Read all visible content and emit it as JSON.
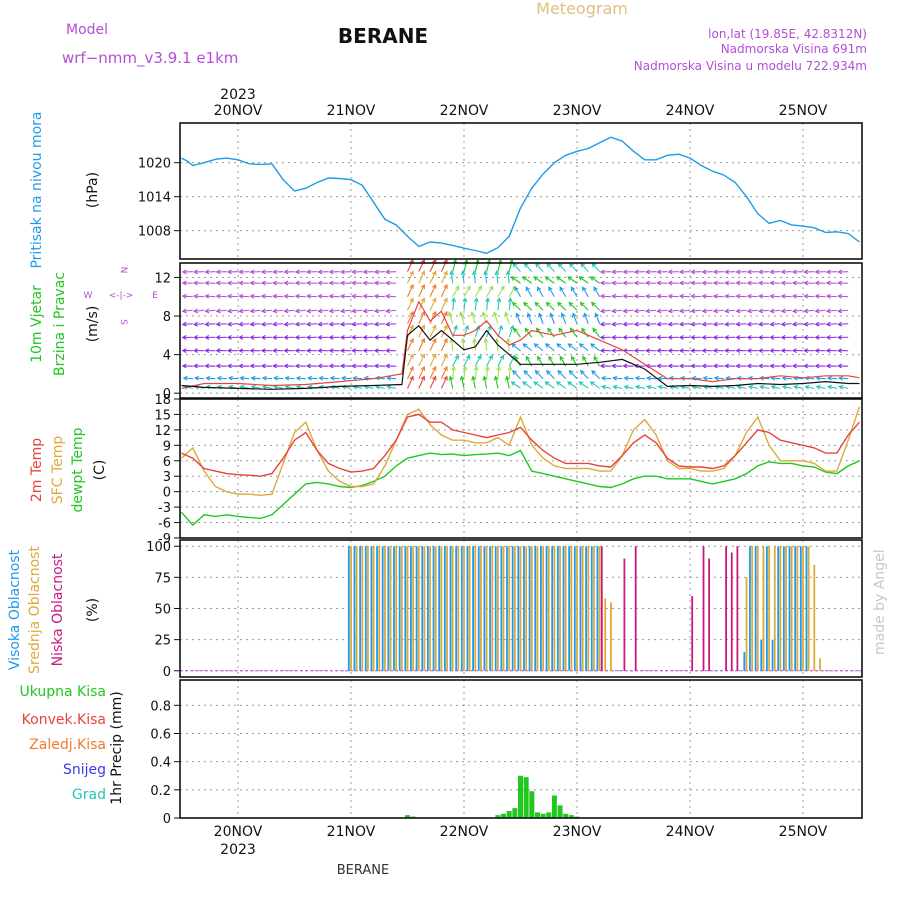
{
  "header": {
    "model_label": "Model",
    "model_name": "wrf−nmm_v3.9.1  e1km",
    "title": "BERANE",
    "meteogram_label": "Meteogram",
    "coords": "lon,lat (19.85E, 42.8312N)",
    "elevation": "Nadmorska Visina 691m",
    "model_elevation": "Nadmorska Visina u modelu 722.934m"
  },
  "footer": {
    "location": "BERANE",
    "watermark": "made by Angel"
  },
  "time_axis": {
    "year": "2023",
    "days": [
      "20NOV",
      "21NOV",
      "22NOV",
      "23NOV",
      "24NOV",
      "25NOV"
    ]
  },
  "colors": {
    "pressure": "#1e9be8",
    "temp_2m": "#e8433b",
    "temp_sfc": "#e0a83a",
    "dewpoint": "#22c722",
    "cloud_high": "#1e9be8",
    "cloud_mid": "#e0a83a",
    "cloud_low": "#c8197e",
    "precip_total": "#22c722",
    "precip_conv": "#e8433b",
    "precip_frozen": "#f07c2a",
    "precip_snow": "#3a3ae8",
    "precip_graupel": "#22c7b5",
    "model_text": "#b34fd6",
    "meteogram_text": "#e0c080"
  },
  "chart_data": [
    {
      "type": "line",
      "panel": "pressure",
      "ylabel_main": "Pritisak na nivou mora",
      "unit": "(hPa)",
      "ylim": [
        1003,
        1027
      ],
      "yticks": [
        1008,
        1014,
        1020
      ],
      "x_days": [
        -0.5,
        -0.45,
        -0.4,
        -0.3,
        -0.2,
        -0.1,
        0.0,
        0.1,
        0.2,
        0.3,
        0.4,
        0.5,
        0.6,
        0.7,
        0.8,
        0.9,
        1.0,
        1.1,
        1.2,
        1.3,
        1.4,
        1.5,
        1.6,
        1.7,
        1.8,
        1.9,
        2.0,
        2.1,
        2.2,
        2.3,
        2.4,
        2.5,
        2.6,
        2.7,
        2.8,
        2.9,
        3.0,
        3.1,
        3.2,
        3.3,
        3.4,
        3.5,
        3.6,
        3.7,
        3.8,
        3.9,
        4.0,
        4.1,
        4.2,
        4.3,
        4.4,
        4.5,
        4.6,
        4.7,
        4.8,
        4.9,
        5.0,
        5.1,
        5.2,
        5.3,
        5.4,
        5.5
      ],
      "series": [
        {
          "values": [
            1020.8,
            1020.3,
            1019.5,
            1020.0,
            1020.6,
            1020.8,
            1020.5,
            1019.8,
            1019.7,
            1019.8,
            1017.0,
            1015.0,
            1015.5,
            1016.5,
            1017.3,
            1017.2,
            1017.0,
            1016.0,
            1013.0,
            1010.0,
            1009.0,
            1007.0,
            1005.2,
            1006.0,
            1005.8,
            1005.4,
            1004.9,
            1004.5,
            1004.0,
            1005.0,
            1007.0,
            1012.0,
            1015.5,
            1018.0,
            1020.0,
            1021.3,
            1022.0,
            1022.5,
            1023.5,
            1024.5,
            1023.8,
            1022.0,
            1020.5,
            1020.5,
            1021.3,
            1021.5,
            1020.8,
            1019.5,
            1018.5,
            1017.8,
            1016.5,
            1014.0,
            1011.0,
            1009.3,
            1009.8,
            1009.0,
            1008.8,
            1008.5,
            1007.7,
            1007.8,
            1007.5,
            1006.0
          ]
        }
      ]
    },
    {
      "type": "line",
      "panel": "wind",
      "ylabel_main": "10m Vjetar",
      "ylabel_sub": "Brzina i Pravac",
      "unit": "(m/s)",
      "compass": {
        "n": "N",
        "s": "S",
        "e": "E",
        "w": "W",
        "arrows": "<-|->"
      },
      "ylim": [
        -0.5,
        13.5
      ],
      "yticks": [
        0,
        4,
        8,
        12
      ],
      "x_days": [
        -0.5,
        -0.3,
        0.0,
        0.3,
        0.6,
        0.9,
        1.2,
        1.45,
        1.5,
        1.6,
        1.7,
        1.8,
        1.9,
        2.0,
        2.1,
        2.2,
        2.3,
        2.4,
        2.5,
        2.6,
        2.8,
        3.0,
        3.2,
        3.4,
        3.6,
        3.8,
        4.0,
        4.2,
        4.4,
        4.6,
        4.8,
        5.0,
        5.2,
        5.4,
        5.5
      ],
      "series": [
        {
          "name": "speed",
          "values": [
            0.8,
            0.6,
            0.5,
            0.4,
            0.5,
            0.7,
            0.8,
            0.9,
            6.0,
            7.0,
            5.5,
            6.5,
            5.5,
            4.5,
            4.8,
            6.5,
            5.0,
            4.0,
            3.0,
            3.0,
            3.0,
            3.0,
            3.2,
            3.5,
            2.5,
            0.7,
            0.8,
            0.7,
            0.8,
            1.0,
            0.9,
            1.0,
            1.2,
            1.0,
            1.0
          ]
        },
        {
          "name": "gust",
          "values": [
            0.5,
            1.0,
            1.0,
            0.8,
            0.9,
            1.2,
            1.5,
            2.0,
            6.5,
            9.5,
            7.5,
            8.5,
            6.0,
            6.0,
            6.5,
            7.5,
            6.0,
            5.0,
            5.5,
            6.5,
            6.0,
            6.5,
            5.5,
            4.5,
            3.0,
            1.5,
            1.5,
            1.2,
            1.5,
            1.5,
            1.8,
            1.6,
            1.8,
            1.8,
            1.6
          ]
        }
      ]
    },
    {
      "type": "line",
      "panel": "temperature",
      "ylabel_lines": [
        "2m Temp",
        "SFC Temp",
        "dewpt Temp"
      ],
      "unit": "(C)",
      "ylim": [
        -9,
        18
      ],
      "yticks": [
        -9,
        -6,
        -3,
        0,
        3,
        6,
        9,
        12,
        15,
        18
      ],
      "x_days": [
        -0.5,
        -0.4,
        -0.3,
        -0.2,
        -0.1,
        0.0,
        0.1,
        0.2,
        0.3,
        0.4,
        0.5,
        0.6,
        0.7,
        0.8,
        0.9,
        1.0,
        1.1,
        1.2,
        1.3,
        1.4,
        1.5,
        1.6,
        1.7,
        1.8,
        1.9,
        2.0,
        2.1,
        2.2,
        2.3,
        2.4,
        2.5,
        2.6,
        2.7,
        2.8,
        2.9,
        3.0,
        3.1,
        3.2,
        3.3,
        3.4,
        3.5,
        3.6,
        3.7,
        3.8,
        3.9,
        4.0,
        4.1,
        4.2,
        4.3,
        4.4,
        4.5,
        4.6,
        4.7,
        4.8,
        4.9,
        5.0,
        5.1,
        5.2,
        5.3,
        5.4,
        5.5
      ],
      "series": [
        {
          "name": "2m Temp",
          "values": [
            7.5,
            6.5,
            4.5,
            4.0,
            3.5,
            3.3,
            3.2,
            3.0,
            3.5,
            6.5,
            10.0,
            11.5,
            8.0,
            5.5,
            4.5,
            3.8,
            4.0,
            4.5,
            7.0,
            10.0,
            14.5,
            15.0,
            13.5,
            13.5,
            12.0,
            11.5,
            11.0,
            10.5,
            11.0,
            11.5,
            12.5,
            10.0,
            8.0,
            6.5,
            5.5,
            5.5,
            5.5,
            5.0,
            4.8,
            7.0,
            9.5,
            11.0,
            9.5,
            6.5,
            5.0,
            4.8,
            4.8,
            4.5,
            5.0,
            7.0,
            9.5,
            12.0,
            11.5,
            10.0,
            9.5,
            9.0,
            8.5,
            7.5,
            7.5,
            11.0,
            13.5
          ]
        },
        {
          "name": "SFC Temp",
          "values": [
            6.5,
            8.5,
            4.0,
            1.0,
            0.0,
            -0.5,
            -0.5,
            -0.7,
            -0.5,
            5.5,
            11.5,
            13.5,
            8.0,
            4.0,
            2.0,
            1.0,
            1.0,
            1.5,
            5.0,
            10.0,
            15.0,
            16.0,
            13.0,
            11.0,
            10.0,
            10.0,
            9.5,
            9.5,
            10.5,
            9.0,
            14.5,
            9.0,
            6.5,
            5.0,
            4.5,
            4.5,
            4.5,
            4.0,
            4.0,
            7.0,
            12.0,
            14.0,
            11.0,
            6.0,
            4.5,
            4.5,
            4.0,
            4.0,
            4.5,
            7.0,
            11.5,
            14.5,
            9.0,
            6.0,
            6.0,
            6.0,
            5.5,
            4.0,
            4.0,
            10.0,
            16.5
          ]
        },
        {
          "name": "dewpt Temp",
          "values": [
            -4.0,
            -6.5,
            -4.5,
            -4.8,
            -4.5,
            -4.8,
            -5.0,
            -5.2,
            -4.5,
            -2.5,
            -0.5,
            1.5,
            1.8,
            1.5,
            1.0,
            0.8,
            1.2,
            2.0,
            3.0,
            5.0,
            6.5,
            7.0,
            7.5,
            7.2,
            7.3,
            7.0,
            7.2,
            7.3,
            7.5,
            7.0,
            8.0,
            4.0,
            3.5,
            3.0,
            2.5,
            2.0,
            1.5,
            1.0,
            0.8,
            1.5,
            2.5,
            3.0,
            3.0,
            2.5,
            2.5,
            2.5,
            2.0,
            1.5,
            2.0,
            2.5,
            3.5,
            5.0,
            5.8,
            5.5,
            5.5,
            5.0,
            4.8,
            3.8,
            3.5,
            5.0,
            6.0
          ]
        }
      ]
    },
    {
      "type": "bar",
      "panel": "cloud_cover",
      "ylabel_lines": [
        "Visoka Oblacnost",
        "Srednja Oblacnost",
        "Niska Oblacnost"
      ],
      "unit": "(%)",
      "ylim": [
        -5,
        105
      ],
      "yticks": [
        0,
        25,
        50,
        75,
        100
      ],
      "x_days": [
        1.0,
        1.05,
        1.1,
        1.15,
        1.2,
        1.25,
        1.3,
        1.35,
        1.4,
        1.45,
        1.5,
        1.55,
        1.6,
        1.65,
        1.7,
        1.75,
        1.8,
        1.85,
        1.9,
        1.95,
        2.0,
        2.05,
        2.1,
        2.15,
        2.2,
        2.25,
        2.3,
        2.35,
        2.4,
        2.45,
        2.5,
        2.55,
        2.6,
        2.65,
        2.7,
        2.75,
        2.8,
        2.85,
        2.9,
        2.95,
        3.0,
        3.05,
        3.1,
        3.15,
        3.2,
        3.25,
        3.3,
        3.4,
        3.5,
        4.0,
        4.1,
        4.15,
        4.3,
        4.35,
        4.4,
        4.5,
        4.55,
        4.6,
        4.65,
        4.7,
        4.75,
        4.8,
        4.85,
        4.9,
        4.95,
        5.0,
        5.05,
        5.1,
        5.15,
        5.2,
        5.25
      ],
      "series": [
        {
          "name": "Visoka Oblacnost",
          "values": [
            100,
            100,
            100,
            100,
            100,
            100,
            100,
            100,
            100,
            100,
            100,
            100,
            100,
            100,
            100,
            100,
            100,
            100,
            100,
            100,
            100,
            100,
            100,
            100,
            100,
            100,
            100,
            100,
            100,
            100,
            100,
            100,
            100,
            100,
            100,
            100,
            100,
            100,
            100,
            100,
            100,
            100,
            100,
            100,
            100,
            0,
            0,
            0,
            0,
            0,
            0,
            0,
            0,
            0,
            0,
            15,
            100,
            100,
            25,
            100,
            25,
            100,
            100,
            100,
            100,
            100,
            100,
            0,
            0,
            0,
            0
          ]
        },
        {
          "name": "Srednja Oblacnost",
          "values": [
            100,
            100,
            100,
            100,
            100,
            100,
            100,
            100,
            100,
            100,
            100,
            100,
            100,
            100,
            100,
            100,
            100,
            100,
            100,
            100,
            100,
            100,
            100,
            100,
            100,
            100,
            100,
            100,
            100,
            100,
            100,
            100,
            100,
            100,
            100,
            100,
            100,
            100,
            100,
            100,
            100,
            100,
            100,
            100,
            100,
            58,
            55,
            0,
            0,
            0,
            0,
            0,
            0,
            0,
            0,
            75,
            100,
            100,
            100,
            100,
            100,
            100,
            100,
            100,
            100,
            100,
            100,
            85,
            10,
            0,
            0
          ]
        },
        {
          "name": "Niska Oblacnost",
          "values": [
            0,
            0,
            0,
            0,
            0,
            0,
            0,
            0,
            0,
            0,
            0,
            0,
            0,
            0,
            0,
            0,
            0,
            0,
            0,
            0,
            0,
            0,
            0,
            0,
            0,
            0,
            0,
            0,
            0,
            0,
            0,
            0,
            0,
            0,
            0,
            0,
            0,
            0,
            0,
            0,
            0,
            0,
            0,
            0,
            100,
            0,
            0,
            90,
            100,
            60,
            100,
            90,
            100,
            95,
            100,
            0,
            0,
            0,
            0,
            0,
            0,
            0,
            0,
            0,
            0,
            0,
            0,
            0,
            0,
            0,
            0
          ]
        }
      ]
    },
    {
      "type": "bar",
      "panel": "precipitation",
      "legend": [
        "Ukupna Kisa",
        "Konvek.Kisa",
        "Zaledj.Kisa",
        "Snijeg",
        "Grad"
      ],
      "ylabel_main": "1hr Precip (mm)",
      "ylim": [
        0,
        0.98
      ],
      "yticks": [
        0,
        0.2,
        0.4,
        0.6,
        0.8
      ],
      "ytick_labels": [
        "0",
        "0.2",
        "0.4",
        "0.6",
        "0.8"
      ],
      "x_days": [
        1.5,
        1.55,
        2.3,
        2.35,
        2.4,
        2.45,
        2.5,
        2.55,
        2.6,
        2.65,
        2.7,
        2.75,
        2.8,
        2.85,
        2.9,
        2.95,
        3.0
      ],
      "series": [
        {
          "name": "Ukupna Kisa",
          "values": [
            0.02,
            0.01,
            0.02,
            0.03,
            0.05,
            0.07,
            0.3,
            0.29,
            0.19,
            0.04,
            0.03,
            0.04,
            0.16,
            0.09,
            0.03,
            0.02,
            0.01
          ]
        }
      ]
    }
  ]
}
